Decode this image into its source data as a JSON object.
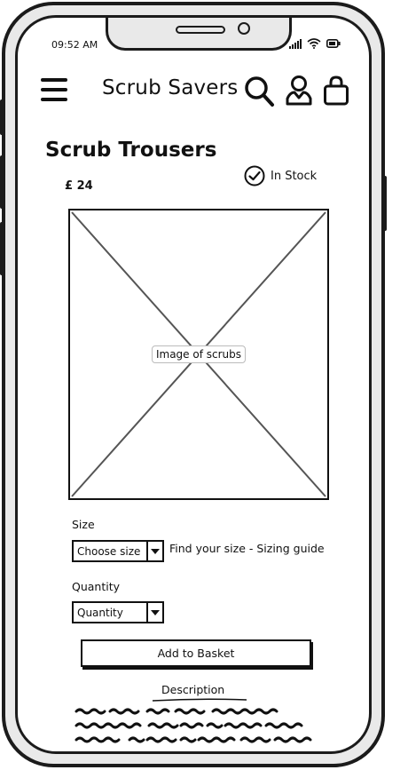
{
  "status_bar": {
    "time": "09:52 AM"
  },
  "header": {
    "brand": "Scrub Savers",
    "icons": [
      "menu-icon",
      "search-icon",
      "user-icon",
      "basket-icon"
    ]
  },
  "product": {
    "title": "Scrub Trousers",
    "price": "£ 24",
    "stock": "In Stock",
    "image_label": "Image of scrubs"
  },
  "size": {
    "label": "Size",
    "selected": "Choose size",
    "guide_text": "Find your size - Sizing guide"
  },
  "quantity": {
    "label": "Quantity",
    "selected": "Quantity"
  },
  "actions": {
    "add_to_basket": "Add to Basket"
  },
  "description": {
    "link": "Description"
  }
}
